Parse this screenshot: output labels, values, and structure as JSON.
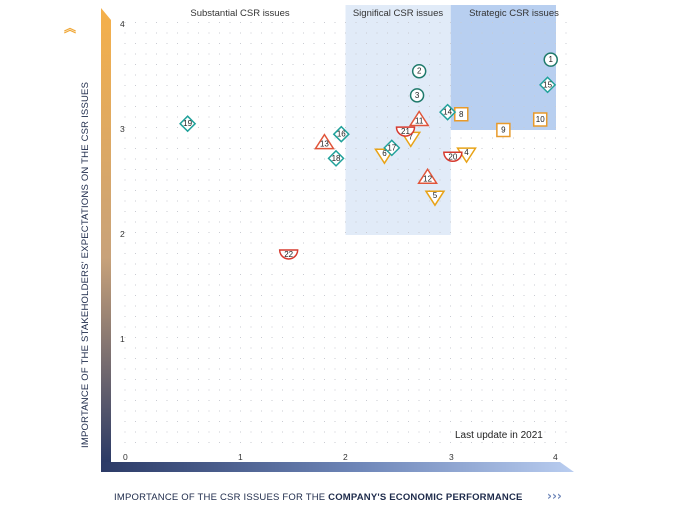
{
  "chart_data": {
    "type": "scatter",
    "xlabel_prefix": "IMPORTANCE OF THE CSR ISSUES FOR THE ",
    "xlabel_bold": "COMPANY'S ECONOMIC PERFORMANCE",
    "ylabel": "IMPORTANCE OF THE STAKEHOLDERS' EXPECTATIONS ON THE CSR ISSUES",
    "xlim": [
      0,
      4
    ],
    "ylim": [
      0,
      4
    ],
    "x_ticks": [
      "0",
      "1",
      "2",
      "3",
      "4"
    ],
    "y_ticks": [
      "1",
      "2",
      "3",
      "4"
    ],
    "grid": "dotted",
    "zones": [
      {
        "label": "Substantial CSR issues",
        "x_range": [
          0,
          2
        ],
        "y_range": [
          2,
          4
        ]
      },
      {
        "label": "Significal CSR issues",
        "x_range": [
          2,
          3
        ],
        "y_range": [
          2,
          4
        ]
      },
      {
        "label": "Strategic CSR issues",
        "x_range": [
          3,
          4
        ],
        "y_range": [
          3,
          4
        ]
      }
    ],
    "annotation": "Last update in 2021",
    "shape_legend": {
      "circle": "#1f7a6b",
      "diamond": "#20a19a",
      "triangle-up": "#e0553a",
      "triangle-down": "#e8a318",
      "square": "#e89a2a",
      "half-circle": "#d63a2f"
    },
    "points": [
      {
        "id": "1",
        "x": 3.95,
        "y": 3.67,
        "shape": "circle"
      },
      {
        "id": "2",
        "x": 2.7,
        "y": 3.56,
        "shape": "circle"
      },
      {
        "id": "3",
        "x": 2.68,
        "y": 3.33,
        "shape": "circle"
      },
      {
        "id": "4",
        "x": 3.15,
        "y": 2.77,
        "shape": "triangle-down"
      },
      {
        "id": "5",
        "x": 2.85,
        "y": 2.36,
        "shape": "triangle-down"
      },
      {
        "id": "6",
        "x": 2.37,
        "y": 2.76,
        "shape": "triangle-down"
      },
      {
        "id": "7",
        "x": 2.62,
        "y": 2.92,
        "shape": "triangle-down"
      },
      {
        "id": "8",
        "x": 3.1,
        "y": 3.15,
        "shape": "square"
      },
      {
        "id": "9",
        "x": 3.5,
        "y": 3.0,
        "shape": "square"
      },
      {
        "id": "10",
        "x": 3.85,
        "y": 3.1,
        "shape": "square"
      },
      {
        "id": "11",
        "x": 2.7,
        "y": 3.1,
        "shape": "triangle-up"
      },
      {
        "id": "12",
        "x": 2.78,
        "y": 2.55,
        "shape": "triangle-up"
      },
      {
        "id": "13",
        "x": 1.8,
        "y": 2.88,
        "shape": "triangle-up"
      },
      {
        "id": "14",
        "x": 2.97,
        "y": 3.17,
        "shape": "diamond"
      },
      {
        "id": "15",
        "x": 3.92,
        "y": 3.43,
        "shape": "diamond"
      },
      {
        "id": "16",
        "x": 1.96,
        "y": 2.96,
        "shape": "diamond"
      },
      {
        "id": "17",
        "x": 2.44,
        "y": 2.83,
        "shape": "diamond"
      },
      {
        "id": "18",
        "x": 1.91,
        "y": 2.73,
        "shape": "diamond"
      },
      {
        "id": "19",
        "x": 0.5,
        "y": 3.06,
        "shape": "diamond"
      },
      {
        "id": "20",
        "x": 3.02,
        "y": 2.74,
        "shape": "half-circle"
      },
      {
        "id": "21",
        "x": 2.57,
        "y": 2.98,
        "shape": "half-circle"
      },
      {
        "id": "22",
        "x": 1.46,
        "y": 1.81,
        "shape": "half-circle"
      }
    ]
  }
}
